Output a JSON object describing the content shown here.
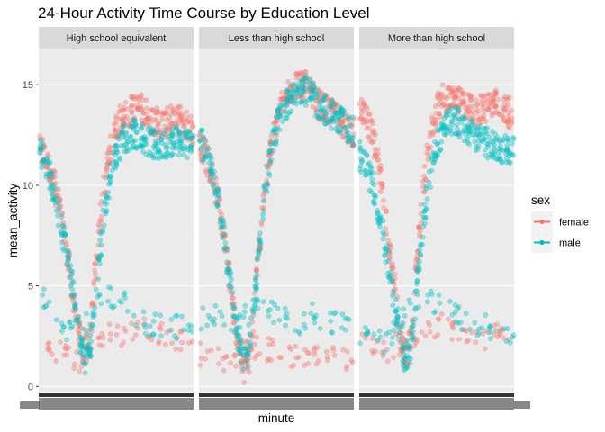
{
  "chart_data": {
    "type": "scatter",
    "title": "24-Hour Activity Time Course by Education Level",
    "xlabel": "minute",
    "ylabel": "mean_activity",
    "ylim": [
      -0.3,
      16.8
    ],
    "xlim": [
      1,
      1440
    ],
    "yticks": [
      0,
      5,
      10,
      15
    ],
    "x_tick_labels_note": "overplotted, illegible",
    "grid": true,
    "legend": {
      "title": "sex",
      "position": "right",
      "entries": [
        {
          "name": "female",
          "color": "#F8766D"
        },
        {
          "name": "male",
          "color": "#00BFC4"
        }
      ]
    },
    "facets": [
      "High school equivalent",
      "Less than high school",
      "More than high school"
    ],
    "x": [
      1,
      60,
      120,
      180,
      240,
      300,
      360,
      420,
      480,
      540,
      600,
      660,
      720,
      780,
      840,
      900,
      960,
      1020,
      1080,
      1140,
      1200,
      1260,
      1320,
      1380,
      1440
    ],
    "series_by_facet": [
      {
        "facet": "High school equivalent",
        "series": [
          {
            "name": "female",
            "main": [
              12.0,
              11.3,
              10.6,
              9.3,
              7.5,
              5.3,
              3.0,
              1.6,
              2.5,
              6.5,
              9.6,
              11.6,
              12.9,
              13.4,
              13.6,
              13.9,
              13.8,
              13.5,
              13.2,
              13.0,
              13.1,
              13.3,
              13.2,
              13.0,
              12.5
            ],
            "sub": [
              2.5,
              1.9,
              1.6,
              1.3,
              2.2,
              2.6,
              2.4,
              3.1,
              2.8,
              2.6,
              2.4,
              2.5
            ]
          },
          {
            "name": "male",
            "main": [
              11.8,
              11.3,
              10.2,
              8.7,
              7.2,
              5.5,
              3.2,
              1.3,
              1.8,
              5.0,
              8.2,
              10.3,
              11.6,
              12.3,
              12.5,
              12.6,
              12.4,
              12.2,
              12.0,
              11.9,
              12.1,
              12.3,
              12.2,
              12.1,
              12.0
            ],
            "sub": [
              4.6,
              3.9,
              2.9,
              2.6,
              4.1,
              4.5,
              4.3,
              3.5,
              3.0,
              3.1,
              2.9,
              2.8
            ]
          }
        ]
      },
      {
        "facet": "Less than high school",
        "series": [
          {
            "name": "female",
            "main": [
              12.2,
              11.5,
              10.6,
              9.2,
              7.3,
              4.8,
              2.2,
              0.8,
              1.5,
              5.7,
              9.2,
              11.5,
              13.1,
              14.1,
              14.7,
              15.0,
              15.1,
              14.7,
              14.2,
              13.9,
              13.7,
              13.4,
              13.2,
              12.9,
              12.6
            ],
            "sub": [
              1.6,
              1.4,
              1.2,
              1.8,
              2.0,
              1.8,
              1.6,
              1.4,
              1.3,
              1.5,
              1.2,
              1.4
            ]
          },
          {
            "name": "male",
            "main": [
              12.4,
              11.7,
              10.8,
              9.4,
              7.2,
              4.8,
              2.5,
              1.2,
              2.0,
              5.8,
              9.0,
              11.3,
              12.8,
              13.7,
              14.2,
              14.7,
              14.9,
              14.6,
              14.2,
              13.9,
              13.7,
              13.4,
              13.2,
              12.9,
              12.6
            ],
            "sub": [
              3.2,
              3.6,
              2.9,
              3.3,
              3.9,
              3.7,
              3.4,
              2.9,
              3.6,
              3.4,
              3.0,
              3.2
            ]
          }
        ]
      },
      {
        "facet": "More than high school",
        "series": [
          {
            "name": "female",
            "main": [
              13.9,
              13.4,
              12.6,
              11.0,
              8.8,
              6.2,
              3.5,
              1.5,
              2.1,
              6.4,
              10.0,
              12.5,
              13.8,
              14.3,
              14.4,
              14.2,
              14.0,
              13.8,
              13.7,
              13.8,
              14.0,
              14.1,
              13.9,
              13.7,
              13.4
            ],
            "sub": [
              2.3,
              2.0,
              1.8,
              2.2,
              2.6,
              2.8,
              3.1,
              2.7,
              2.5,
              2.4,
              2.6,
              2.5
            ]
          },
          {
            "name": "male",
            "main": [
              11.5,
              11.0,
              10.2,
              8.8,
              7.0,
              5.0,
              3.2,
              1.4,
              1.9,
              5.2,
              8.4,
              10.6,
              12.0,
              12.8,
              13.1,
              13.2,
              13.0,
              12.7,
              12.4,
              12.2,
              12.1,
              12.0,
              11.9,
              11.8,
              11.7
            ],
            "sub": [
              2.6,
              2.2,
              2.3,
              3.1,
              4.2,
              4.4,
              3.9,
              3.4,
              3.2,
              3.0,
              2.8,
              2.6
            ]
          }
        ]
      }
    ]
  }
}
